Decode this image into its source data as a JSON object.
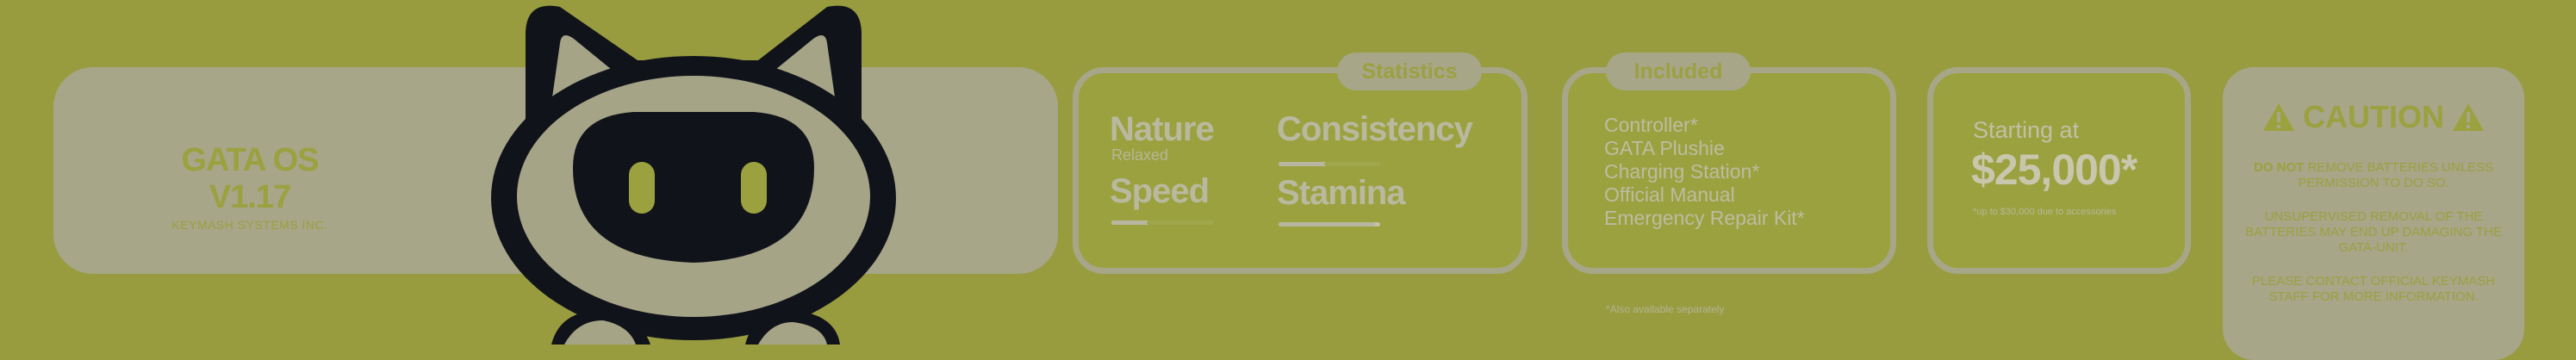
{
  "brand": {
    "title": "GATA OS V1.17",
    "subtitle": "KEYMASH SYSTEMS INC."
  },
  "statistics": {
    "header": "Statistics",
    "items": [
      {
        "label": "Nature",
        "sub": "Relaxed",
        "level": null
      },
      {
        "label": "Consistency",
        "level": 0.45
      },
      {
        "label": "Speed",
        "level": 0.35
      },
      {
        "label": "Stamina",
        "level": 0.95
      }
    ]
  },
  "included": {
    "header": "Included",
    "items": [
      "Controller*",
      "GATA Plushie",
      "Charging Station*",
      "Official Manual",
      "Emergency Repair Kit*"
    ],
    "footnote": "*Also available separately"
  },
  "pricing": {
    "label": "Starting at",
    "value": "$25,000*",
    "fine_print": "*up to $30,000 due to accessories"
  },
  "caution": {
    "title": "CAUTION",
    "paragraphs": [
      {
        "strong": "DO NOT",
        "rest": " REMOVE BATTERIES UNLESS PERMISSION TO DO SO."
      },
      {
        "text": "UNSUPERVISED REMOVAL OF THE BATTERIES MAY END UP DAMAGING THE GATA-UNIT."
      },
      {
        "text": "PLEASE CONTACT OFFICIAL KEYMASH STAFF FOR MORE INFORMATION."
      }
    ]
  },
  "colors": {
    "background": "#989c3f",
    "panel": "#a7a688",
    "accent": "#9aa13e",
    "mascot_dark": "#11131a"
  },
  "icons": [
    "mascot-illustration",
    "warning-icon"
  ]
}
